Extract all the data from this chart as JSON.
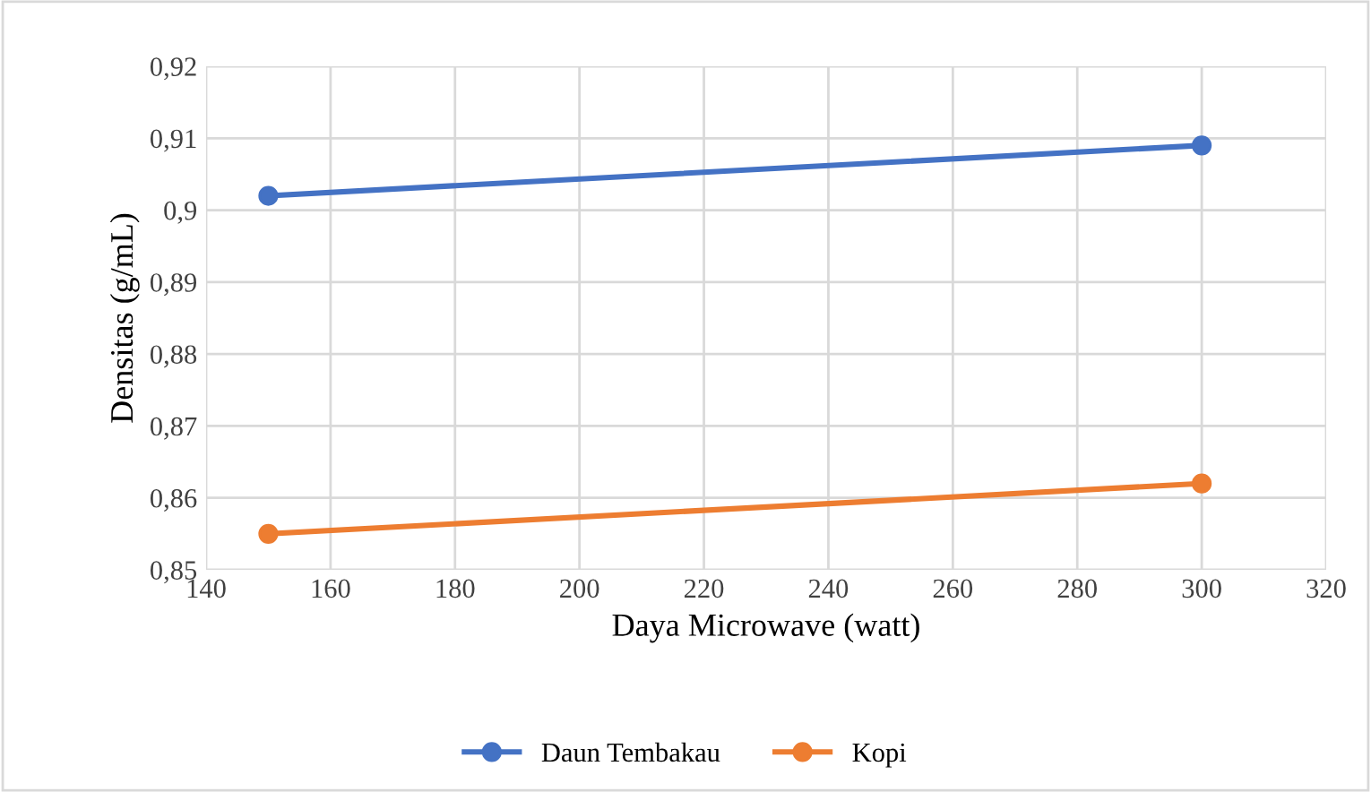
{
  "chart_data": {
    "type": "line",
    "xlabel": "Daya Microwave (watt)",
    "ylabel": "Densitas (g/mL)",
    "x": [
      150,
      300
    ],
    "series": [
      {
        "name": "Daun Tembakau",
        "color": "#4472c4",
        "values": [
          0.902,
          0.909
        ]
      },
      {
        "name": "Kopi",
        "color": "#ed7d31",
        "values": [
          0.855,
          0.862
        ]
      }
    ],
    "xlim": [
      140,
      320
    ],
    "xticks": [
      140,
      160,
      180,
      200,
      220,
      240,
      260,
      280,
      300,
      320
    ],
    "ylim": [
      0.85,
      0.92
    ],
    "yticks": [
      {
        "value": 0.85,
        "label": "0,85"
      },
      {
        "value": 0.86,
        "label": "0,86"
      },
      {
        "value": 0.87,
        "label": "0,87"
      },
      {
        "value": 0.88,
        "label": "0,88"
      },
      {
        "value": 0.89,
        "label": "0,89"
      },
      {
        "value": 0.9,
        "label": "0,9"
      },
      {
        "value": 0.91,
        "label": "0,91"
      },
      {
        "value": 0.92,
        "label": "0,92"
      }
    ],
    "grid": true,
    "legend": "bottom",
    "marker": "circle",
    "line_style": "solid"
  }
}
